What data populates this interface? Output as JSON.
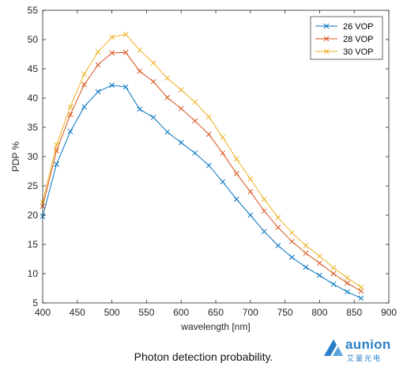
{
  "chart_data": {
    "type": "line",
    "xlabel": "wavelength [nm]",
    "ylabel": "PDP %",
    "xlim": [
      400,
      900
    ],
    "ylim": [
      5,
      55
    ],
    "xticks": [
      400,
      450,
      500,
      550,
      600,
      650,
      700,
      750,
      800,
      850,
      900
    ],
    "yticks": [
      5,
      10,
      15,
      20,
      25,
      30,
      35,
      40,
      45,
      50,
      55
    ],
    "grid": false,
    "legend_position": "top-right",
    "marker": "x",
    "x": [
      400,
      420,
      440,
      460,
      480,
      500,
      520,
      540,
      560,
      580,
      600,
      620,
      640,
      660,
      680,
      700,
      720,
      740,
      760,
      780,
      800,
      820,
      840,
      860
    ],
    "series": [
      {
        "name": "26 VOP",
        "color": "#0072BD",
        "values": [
          19.8,
          28.7,
          34.3,
          38.5,
          41.1,
          42.2,
          41.9,
          38.1,
          36.7,
          34.2,
          32.4,
          30.6,
          28.5,
          25.7,
          22.7,
          20.0,
          17.2,
          14.8,
          12.8,
          11.1,
          9.7,
          8.2,
          6.9,
          5.8
        ]
      },
      {
        "name": "28 VOP",
        "color": "#D95319",
        "values": [
          21.5,
          31.0,
          37.2,
          42.3,
          45.7,
          47.7,
          47.8,
          44.6,
          42.8,
          40.1,
          38.2,
          36.1,
          33.8,
          30.6,
          27.1,
          24.0,
          20.7,
          17.9,
          15.5,
          13.5,
          11.8,
          10.0,
          8.4,
          7.0
        ]
      },
      {
        "name": "30 VOP",
        "color": "#EDB120",
        "values": [
          22.2,
          32.0,
          38.5,
          44.1,
          47.9,
          50.4,
          50.9,
          48.2,
          46.0,
          43.4,
          41.4,
          39.3,
          36.8,
          33.3,
          29.6,
          26.2,
          22.7,
          19.6,
          17.0,
          14.8,
          13.0,
          11.0,
          9.3,
          7.7
        ]
      }
    ]
  },
  "caption": "Photon detection probability.",
  "logo": {
    "word": "aunion",
    "sub": "艾量光电",
    "color": "#2b7fc8"
  }
}
